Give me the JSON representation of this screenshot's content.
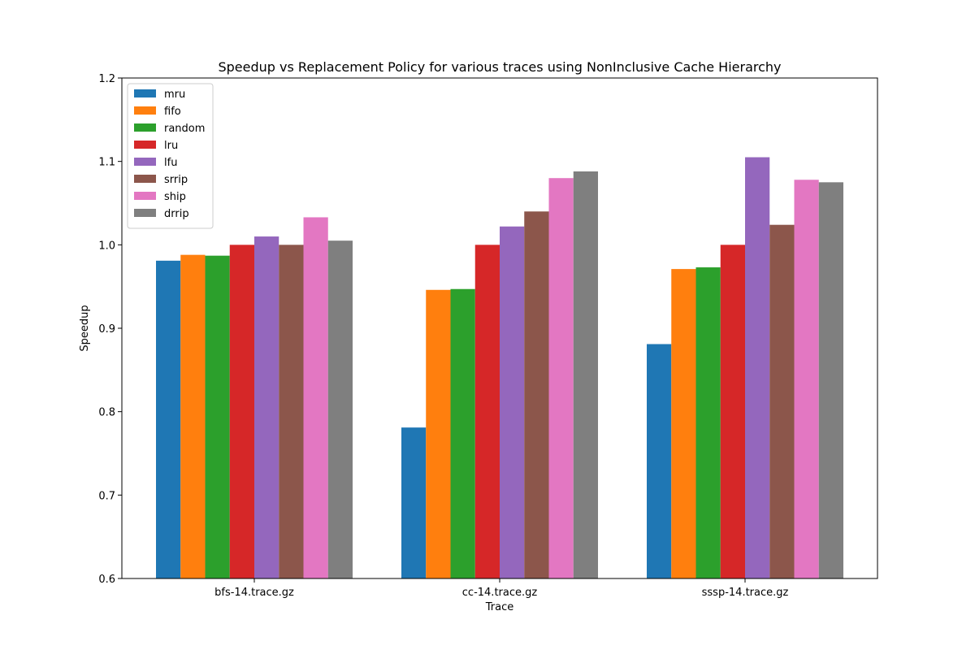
{
  "chart_data": {
    "type": "bar",
    "title": "Speedup vs Replacement Policy for various traces using NonInclusive Cache Hierarchy",
    "xlabel": "Trace",
    "ylabel": "Speedup",
    "ylim": [
      0.6,
      1.2
    ],
    "yticks": [
      "0.6",
      "0.7",
      "0.8",
      "0.9",
      "1.0",
      "1.1",
      "1.2"
    ],
    "grid": false,
    "legend_position": "top-left",
    "categories": [
      "bfs-14.trace.gz",
      "cc-14.trace.gz",
      "sssp-14.trace.gz"
    ],
    "series": [
      {
        "name": "mru",
        "color": "#1f77b4",
        "values": [
          0.981,
          0.781,
          0.881
        ]
      },
      {
        "name": "fifo",
        "color": "#ff7f0e",
        "values": [
          0.988,
          0.946,
          0.971
        ]
      },
      {
        "name": "random",
        "color": "#2ca02c",
        "values": [
          0.987,
          0.947,
          0.973
        ]
      },
      {
        "name": "lru",
        "color": "#d62728",
        "values": [
          1.0,
          1.0,
          1.0
        ]
      },
      {
        "name": "lfu",
        "color": "#9467bd",
        "values": [
          1.01,
          1.022,
          1.105
        ]
      },
      {
        "name": "srrip",
        "color": "#8c564b",
        "values": [
          1.0,
          1.04,
          1.024
        ]
      },
      {
        "name": "ship",
        "color": "#e377c2",
        "values": [
          1.033,
          1.08,
          1.078
        ]
      },
      {
        "name": "drrip",
        "color": "#7f7f7f",
        "values": [
          1.005,
          1.088,
          1.075
        ]
      }
    ]
  }
}
